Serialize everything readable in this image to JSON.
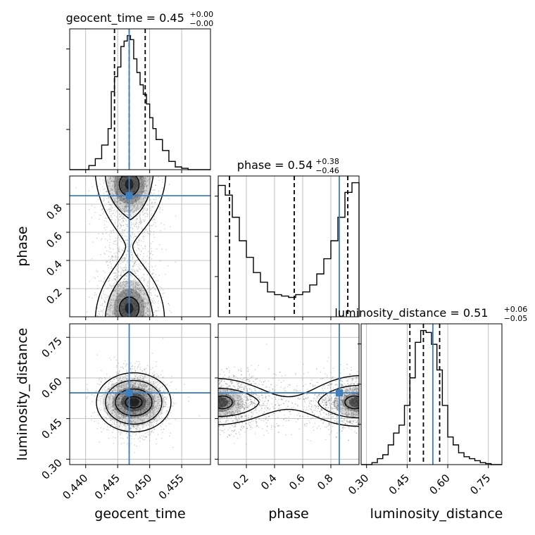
{
  "colors": {
    "truth": "#3f7fbf",
    "hist": "#000000",
    "grid": "#b0b0b0",
    "scatter": "#7f7f7f"
  },
  "chart_data": {
    "type": "corner",
    "parameters": [
      "geocent_time",
      "phase",
      "luminosity_distance"
    ],
    "titles": [
      {
        "text": "geocent_time = 0.45",
        "plus": "+0.00",
        "minus": "−0.00"
      },
      {
        "text": "phase = 0.54",
        "plus": "+0.38",
        "minus": "−0.46"
      },
      {
        "text": "luminosity_distance = 0.51",
        "plus": "+0.06",
        "minus": "−0.05"
      }
    ],
    "ranges": [
      [
        0.4375,
        0.4595
      ],
      [
        0.0,
        1.0
      ],
      [
        0.28,
        0.8
      ]
    ],
    "ticks": [
      {
        "values": [
          0.44,
          0.445,
          0.45,
          0.455
        ],
        "labels": [
          "0.440",
          "0.445",
          "0.450",
          "0.455"
        ]
      },
      {
        "values": [
          0.2,
          0.4,
          0.6,
          0.8
        ],
        "labels": [
          "0.2",
          "0.4",
          "0.6",
          "0.8"
        ]
      },
      {
        "values": [
          0.3,
          0.45,
          0.6,
          0.75
        ],
        "labels": [
          "0.30",
          "0.45",
          "0.60",
          "0.75"
        ]
      }
    ],
    "truths": [
      0.4468,
      0.86,
      0.545
    ],
    "quantiles": [
      [
        0.4445,
        0.4468,
        0.4493
      ],
      [
        0.08,
        0.54,
        0.92
      ],
      [
        0.46,
        0.51,
        0.57
      ]
    ],
    "histograms": [
      {
        "edges": [
          0.4375,
          0.4405,
          0.4415,
          0.4425,
          0.4435,
          0.444,
          0.4445,
          0.445,
          0.4455,
          0.446,
          0.4465,
          0.447,
          0.4475,
          0.448,
          0.4485,
          0.449,
          0.4495,
          0.45,
          0.4505,
          0.451,
          0.452,
          0.453,
          0.454,
          0.455,
          0.456,
          0.4595
        ],
        "counts": [
          0,
          3,
          8,
          18,
          30,
          57,
          68,
          75,
          90,
          94,
          98,
          95,
          81,
          71,
          62,
          55,
          48,
          38,
          30,
          22,
          14,
          6,
          2,
          1,
          0
        ]
      },
      {
        "edges": [
          0.0,
          0.05,
          0.1,
          0.15,
          0.2,
          0.25,
          0.3,
          0.35,
          0.4,
          0.45,
          0.5,
          0.55,
          0.6,
          0.65,
          0.7,
          0.75,
          0.8,
          0.85,
          0.9,
          0.95,
          1.0
        ],
        "counts": [
          0.95,
          0.88,
          0.72,
          0.55,
          0.43,
          0.32,
          0.25,
          0.18,
          0.16,
          0.15,
          0.14,
          0.16,
          0.18,
          0.23,
          0.31,
          0.42,
          0.55,
          0.72,
          0.9,
          0.97
        ]
      },
      {
        "edges": [
          0.28,
          0.3,
          0.32,
          0.34,
          0.36,
          0.38,
          0.4,
          0.42,
          0.44,
          0.46,
          0.48,
          0.5,
          0.52,
          0.54,
          0.56,
          0.58,
          0.6,
          0.62,
          0.64,
          0.66,
          0.68,
          0.7,
          0.72,
          0.74,
          0.76,
          0.78,
          0.8
        ],
        "counts": [
          0,
          0,
          1,
          3,
          5,
          10,
          16,
          20,
          30,
          44,
          62,
          68,
          67,
          61,
          48,
          30,
          14,
          10,
          6,
          4,
          3,
          2,
          1,
          0.5,
          0,
          0
        ]
      }
    ],
    "grid": true
  }
}
